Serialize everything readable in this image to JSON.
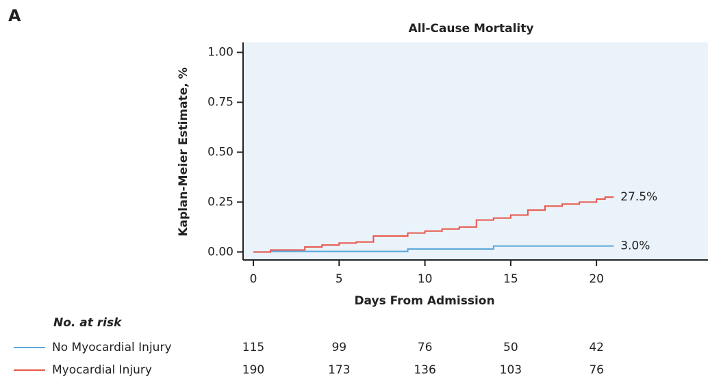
{
  "panel_label": "A",
  "chart_data": {
    "type": "step",
    "title": "All-Cause Mortality",
    "x_label": "Days From Admission",
    "y_label": "Kaplan-Meier Estimate, %",
    "xlim": [
      -0.6,
      26.5
    ],
    "ylim": [
      -0.04,
      1.05
    ],
    "xticks": [
      0,
      5,
      10,
      15,
      20
    ],
    "yticks": [
      {
        "value": 0,
        "label": "0.00"
      },
      0.25,
      {
        "value": 0.5,
        "label": "0.50"
      },
      0.75,
      {
        "value": 1,
        "label": "1.00"
      }
    ],
    "background": "#eaf2fa",
    "series": [
      {
        "name": "No Myocardial Injury",
        "color": "#5aa7d9",
        "x": [
          0,
          1,
          9,
          14,
          21
        ],
        "values": [
          0,
          0.003,
          0.015,
          0.03,
          0.03
        ],
        "end_label": {
          "value": 0.03,
          "label": "3.0%"
        }
      },
      {
        "name": "Myocardial Injury",
        "color": "#e8574a",
        "x": [
          0,
          1,
          3,
          4,
          5,
          6,
          7,
          9,
          10,
          11,
          12,
          13,
          14,
          15,
          16,
          17,
          18,
          19,
          20,
          20.5,
          21
        ],
        "values": [
          0,
          0.01,
          0.025,
          0.035,
          0.045,
          0.05,
          0.08,
          0.095,
          0.105,
          0.115,
          0.125,
          0.16,
          0.17,
          0.185,
          0.21,
          0.23,
          0.24,
          0.25,
          0.265,
          0.275,
          0.275
        ],
        "end_label": {
          "value": 0.275,
          "label": "27.5%"
        }
      }
    ],
    "risk_table": {
      "title": "No. at risk",
      "x": [
        0,
        5,
        10,
        15,
        20
      ],
      "rows": [
        [
          115,
          99,
          76,
          50,
          42
        ],
        [
          190,
          173,
          136,
          103,
          76
        ]
      ]
    }
  }
}
